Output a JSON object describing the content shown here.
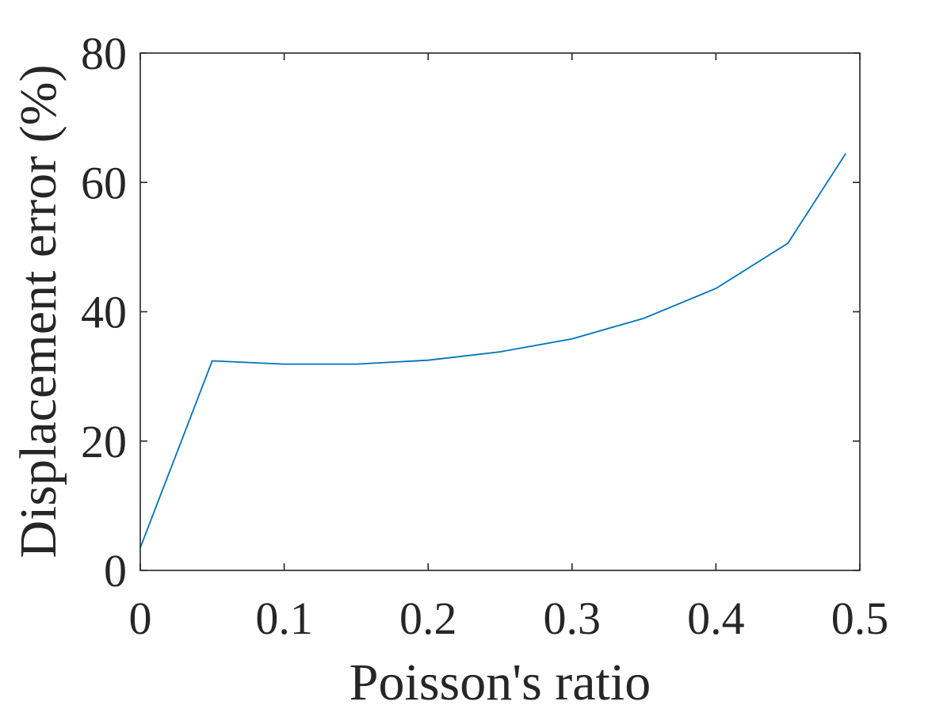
{
  "chart_data": {
    "type": "line",
    "title": "",
    "xlabel": "Poisson's ratio",
    "ylabel": "Displacement error (%)",
    "xlim": [
      0,
      0.5
    ],
    "ylim": [
      0,
      80
    ],
    "xticks": [
      "0",
      "0.1",
      "0.2",
      "0.3",
      "0.4",
      "0.5"
    ],
    "yticks": [
      "0",
      "20",
      "40",
      "60",
      "80"
    ],
    "grid": false,
    "legend": "none",
    "series": [
      {
        "color": "#0072BD",
        "x": [
          0,
          0.05,
          0.1,
          0.15,
          0.2,
          0.25,
          0.3,
          0.35,
          0.4,
          0.45,
          0.49
        ],
        "y": [
          3.5,
          32.4,
          31.9,
          31.9,
          32.5,
          33.8,
          35.8,
          39.0,
          43.6,
          50.6,
          64.4
        ]
      }
    ]
  }
}
